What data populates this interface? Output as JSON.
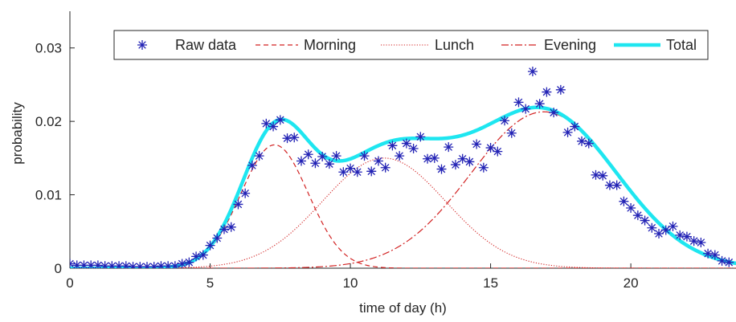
{
  "chart_data": {
    "type": "line",
    "title": "",
    "xlabel": "time of day (h)",
    "ylabel": "probability",
    "xlim": [
      0,
      23.75
    ],
    "ylim": [
      0,
      0.035
    ],
    "xticks": [
      0,
      5,
      10,
      15,
      20
    ],
    "xtick_labels": [
      "0",
      "5",
      "10",
      "15",
      "20"
    ],
    "yticks": [
      0,
      0.01,
      0.02,
      0.03
    ],
    "ytick_labels": [
      "0",
      "0.01",
      "0.02",
      "0.03"
    ],
    "grid": false,
    "legend_placement": "top, horizontal",
    "colors": {
      "raw": "#2323b5",
      "components": "#d22222",
      "total": "#1ee6f0",
      "axes": "#262626"
    },
    "legend": [
      {
        "key": "raw",
        "label": "Raw data",
        "style": "star"
      },
      {
        "key": "morning",
        "label": "Morning",
        "style": "dashed"
      },
      {
        "key": "lunch",
        "label": "Lunch",
        "style": "dotted"
      },
      {
        "key": "evening",
        "label": "Evening",
        "style": "dashdot"
      },
      {
        "key": "total",
        "label": "Total",
        "style": "thick"
      }
    ],
    "raw": {
      "name": "Raw data",
      "x": [
        0,
        0.25,
        0.5,
        0.75,
        1,
        1.25,
        1.5,
        1.75,
        2,
        2.25,
        2.5,
        2.75,
        3,
        3.25,
        3.5,
        3.75,
        4,
        4.25,
        4.5,
        4.75,
        5,
        5.25,
        5.5,
        5.75,
        6,
        6.25,
        6.5,
        6.75,
        7,
        7.25,
        7.5,
        7.75,
        8,
        8.25,
        8.5,
        8.75,
        9,
        9.25,
        9.5,
        9.75,
        10,
        10.25,
        10.5,
        10.75,
        11,
        11.25,
        11.5,
        11.75,
        12,
        12.25,
        12.5,
        12.75,
        13,
        13.25,
        13.5,
        13.75,
        14,
        14.25,
        14.5,
        14.75,
        15,
        15.25,
        15.5,
        15.75,
        16,
        16.25,
        16.5,
        16.75,
        17,
        17.25,
        17.5,
        17.75,
        18,
        18.25,
        18.5,
        18.75,
        19,
        19.25,
        19.5,
        19.75,
        20,
        20.25,
        20.5,
        20.75,
        21,
        21.25,
        21.5,
        21.75,
        22,
        22.25,
        22.5,
        22.75,
        23,
        23.25,
        23.5
      ],
      "y": [
        0.0006,
        0.0004,
        0.0004,
        0.0004,
        0.0004,
        0.0003,
        0.0003,
        0.0003,
        0.0003,
        0.0002,
        0.0002,
        0.0002,
        0.0002,
        0.0003,
        0.0003,
        0.0003,
        0.0006,
        0.0008,
        0.0016,
        0.0018,
        0.0031,
        0.0041,
        0.0053,
        0.0056,
        0.0087,
        0.0102,
        0.014,
        0.0153,
        0.0197,
        0.0193,
        0.0202,
        0.0177,
        0.0178,
        0.0146,
        0.0155,
        0.0143,
        0.0152,
        0.0142,
        0.0153,
        0.0131,
        0.0136,
        0.0131,
        0.0153,
        0.0132,
        0.0146,
        0.0137,
        0.0167,
        0.0153,
        0.017,
        0.0163,
        0.0179,
        0.0149,
        0.015,
        0.0135,
        0.0165,
        0.0141,
        0.0149,
        0.0145,
        0.0169,
        0.0137,
        0.0164,
        0.0159,
        0.0201,
        0.0184,
        0.0226,
        0.0217,
        0.0268,
        0.0224,
        0.024,
        0.0212,
        0.0243,
        0.0185,
        0.0193,
        0.0173,
        0.017,
        0.0127,
        0.0126,
        0.0113,
        0.0113,
        0.0091,
        0.0082,
        0.0072,
        0.0065,
        0.0055,
        0.0047,
        0.0052,
        0.0057,
        0.0045,
        0.0043,
        0.0037,
        0.0035,
        0.002,
        0.0018,
        0.001,
        0.0008
      ]
    },
    "components": [
      {
        "key": "morning",
        "name": "Morning",
        "amp": 0.0168,
        "mu": 7.3,
        "sigma": 1.2
      },
      {
        "key": "lunch",
        "name": "Lunch",
        "amp": 0.015,
        "mu": 11.2,
        "sigma": 2.2
      },
      {
        "key": "evening",
        "name": "Evening",
        "amp": 0.0213,
        "mu": 16.9,
        "sigma": 2.6
      }
    ],
    "total": {
      "name": "Total",
      "components_sum": [
        "morning",
        "lunch",
        "evening"
      ]
    }
  }
}
